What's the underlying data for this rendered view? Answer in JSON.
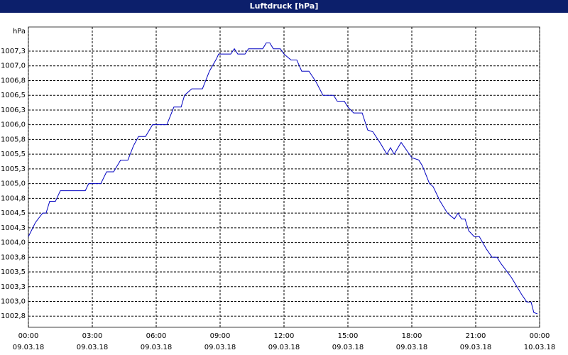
{
  "chart_data": {
    "type": "line",
    "title": "Luftdruck [hPa]",
    "y_label": "hPa",
    "xlim": [
      0,
      24
    ],
    "ylim": [
      1002.56,
      1007.66
    ],
    "xticks": [
      {
        "value": 0,
        "label": "00:00"
      },
      {
        "value": 3,
        "label": "03:00"
      },
      {
        "value": 6,
        "label": "06:00"
      },
      {
        "value": 9,
        "label": "09:00"
      },
      {
        "value": 12,
        "label": "12:00"
      },
      {
        "value": 15,
        "label": "15:00"
      },
      {
        "value": 18,
        "label": "18:00"
      },
      {
        "value": 21,
        "label": "21:00"
      },
      {
        "value": 24,
        "label": "00:00"
      }
    ],
    "xtick_dates": [
      "09.03.18",
      "09.03.18",
      "09.03.18",
      "09.03.18",
      "09.03.18",
      "09.03.18",
      "09.03.18",
      "09.03.18",
      "10.03.18"
    ],
    "yticks": [
      {
        "value": 1002.75,
        "label": "1002,8"
      },
      {
        "value": 1003.0,
        "label": "1003,0"
      },
      {
        "value": 1003.25,
        "label": "1003,3"
      },
      {
        "value": 1003.5,
        "label": "1003,5"
      },
      {
        "value": 1003.75,
        "label": "1003,8"
      },
      {
        "value": 1004.0,
        "label": "1004,0"
      },
      {
        "value": 1004.25,
        "label": "1004,3"
      },
      {
        "value": 1004.5,
        "label": "1004,5"
      },
      {
        "value": 1004.75,
        "label": "1004,8"
      },
      {
        "value": 1005.0,
        "label": "1005,0"
      },
      {
        "value": 1005.25,
        "label": "1005,3"
      },
      {
        "value": 1005.5,
        "label": "1005,5"
      },
      {
        "value": 1005.75,
        "label": "1005,8"
      },
      {
        "value": 1006.0,
        "label": "1006,0"
      },
      {
        "value": 1006.25,
        "label": "1006,3"
      },
      {
        "value": 1006.5,
        "label": "1006,5"
      },
      {
        "value": 1006.75,
        "label": "1006,8"
      },
      {
        "value": 1007.0,
        "label": "1007,0"
      },
      {
        "value": 1007.25,
        "label": "1007,3"
      }
    ],
    "grid": true,
    "color": "#0000c0",
    "x": [
      0,
      0.33,
      0.67,
      0.83,
      1,
      1.27,
      1.5,
      2.67,
      2.83,
      3.4,
      3.67,
      4,
      4.33,
      4.67,
      4.93,
      5.17,
      5.5,
      5.83,
      6.5,
      6.83,
      7.17,
      7.33,
      7.67,
      8.17,
      8.5,
      8.83,
      8.93,
      9.5,
      9.67,
      9.83,
      10.17,
      10.33,
      11,
      11.17,
      11.33,
      11.5,
      11.83,
      12,
      12.33,
      12.6,
      12.83,
      13.17,
      13.5,
      13.83,
      14.33,
      14.5,
      14.83,
      15,
      15.27,
      15.67,
      15.93,
      16.17,
      16.5,
      16.83,
      17,
      17.17,
      17.5,
      18,
      18.33,
      18.5,
      18.83,
      19,
      19.33,
      19.67,
      20,
      20.17,
      20.33,
      20.5,
      20.67,
      20.93,
      21.17,
      21.5,
      21.77,
      22,
      22.17,
      22.67,
      23.17,
      23.4,
      23.6,
      23.73,
      23.9
    ],
    "values": [
      1004.1,
      1004.34,
      1004.5,
      1004.5,
      1004.7,
      1004.7,
      1004.88,
      1004.88,
      1005.0,
      1005.0,
      1005.2,
      1005.2,
      1005.4,
      1005.4,
      1005.64,
      1005.8,
      1005.8,
      1006.0,
      1006.0,
      1006.3,
      1006.3,
      1006.5,
      1006.61,
      1006.61,
      1006.91,
      1007.12,
      1007.2,
      1007.2,
      1007.29,
      1007.2,
      1007.2,
      1007.29,
      1007.29,
      1007.39,
      1007.39,
      1007.29,
      1007.29,
      1007.2,
      1007.1,
      1007.1,
      1006.91,
      1006.91,
      1006.73,
      1006.5,
      1006.5,
      1006.4,
      1006.4,
      1006.3,
      1006.2,
      1006.2,
      1005.91,
      1005.88,
      1005.7,
      1005.5,
      1005.61,
      1005.5,
      1005.7,
      1005.44,
      1005.4,
      1005.3,
      1005.0,
      1004.95,
      1004.7,
      1004.5,
      1004.4,
      1004.5,
      1004.4,
      1004.4,
      1004.2,
      1004.1,
      1004.1,
      1003.89,
      1003.75,
      1003.75,
      1003.65,
      1003.41,
      1003.11,
      1002.99,
      1002.99,
      1002.81,
      1002.79
    ]
  }
}
